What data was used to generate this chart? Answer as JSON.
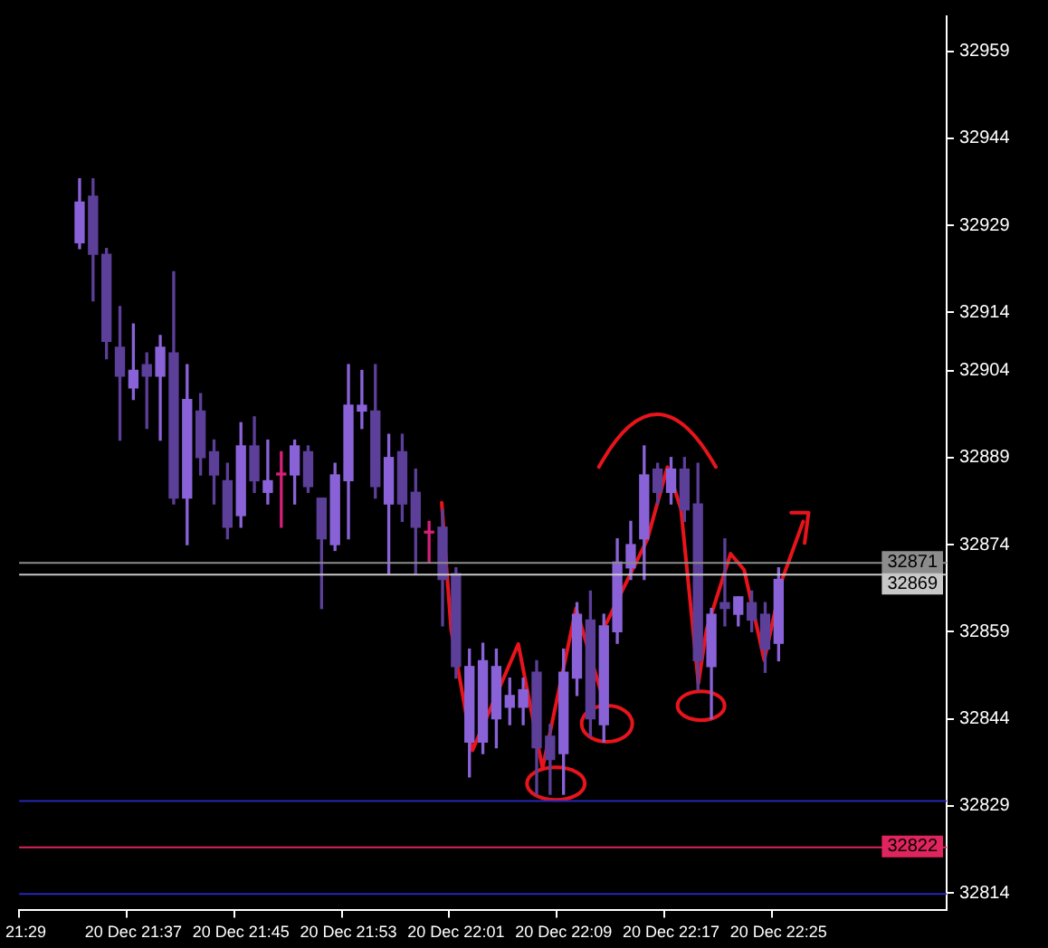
{
  "chart_data": {
    "type": "candlestick",
    "categories": [
      "21:29",
      null,
      null,
      null,
      null,
      null,
      null,
      null,
      "20 Dec 21:37",
      null,
      null,
      null,
      null,
      null,
      null,
      null,
      "20 Dec 21:45",
      null,
      null,
      null,
      null,
      null,
      null,
      null,
      "20 Dec 21:53",
      null,
      null,
      null,
      null,
      null,
      null,
      null,
      "20 Dec 22:01",
      null,
      null,
      null,
      null,
      null,
      null,
      null,
      "20 Dec 22:09",
      null,
      null,
      null,
      null,
      null,
      null,
      null,
      "20 Dec 22:17",
      null,
      null,
      null,
      null,
      null,
      null,
      null,
      "20 Dec 22:25",
      null,
      null,
      null,
      null,
      null,
      null,
      null,
      null,
      null,
      null,
      null,
      null
    ],
    "ohlc": [
      null,
      null,
      null,
      null,
      [
        32926,
        32937,
        32925,
        32933
      ],
      [
        32934,
        32937,
        32916,
        32924
      ],
      [
        32924,
        32925,
        32906,
        32909
      ],
      [
        32908,
        32915,
        32892,
        32903
      ],
      [
        32901,
        32912,
        32899,
        32904
      ],
      [
        32905,
        32907,
        32894,
        32903
      ],
      [
        32903,
        32910,
        32892,
        32908
      ],
      [
        32907,
        32921,
        32881,
        32882
      ],
      [
        32882,
        32905,
        32874,
        32899
      ],
      [
        32897,
        32900,
        32886,
        32889
      ],
      [
        32890,
        32892,
        32881,
        32886
      ],
      [
        32885,
        32888,
        32875,
        32877
      ],
      [
        32879,
        32895,
        32877,
        32891
      ],
      [
        32891,
        32896,
        32883,
        32885
      ],
      [
        32883,
        32892,
        32881,
        32885
      ],
      [
        32886,
        32890,
        32877,
        32886
      ],
      [
        32886,
        32892,
        32881,
        32891
      ],
      [
        32890,
        32891,
        32883,
        32884
      ],
      [
        32882,
        32882,
        32863,
        32875
      ],
      [
        32874,
        32888,
        32873,
        32886
      ],
      [
        32885,
        32905,
        32875,
        32898
      ],
      [
        32897,
        32904,
        32894,
        32898
      ],
      [
        32897,
        32905,
        32882,
        32884
      ],
      [
        32881,
        32893,
        32869,
        32889
      ],
      [
        32890,
        32893,
        32878,
        32881
      ],
      [
        32883,
        32887,
        32869,
        32877
      ],
      [
        32876,
        32878,
        32871,
        32876
      ],
      [
        32877,
        32880,
        32860,
        32868
      ],
      [
        32869,
        32870,
        32851,
        32853
      ],
      [
        32840,
        32856,
        32834,
        32853
      ],
      [
        32840,
        32857,
        32838,
        32854
      ],
      [
        32844,
        32856,
        32839,
        32853
      ],
      [
        32846,
        32851,
        32843,
        32848
      ],
      [
        32846,
        32851,
        32843,
        32849
      ],
      [
        32852,
        32854,
        32831,
        32839
      ],
      [
        32841,
        32843,
        32831,
        32837
      ],
      [
        32838,
        32856,
        32831,
        32852
      ],
      [
        32851,
        32864,
        32848,
        32862
      ],
      [
        32861,
        32866,
        32841,
        32844
      ],
      [
        32843,
        32862,
        32840,
        32860
      ],
      [
        32859,
        32875,
        32857,
        32871
      ],
      [
        32870,
        32878,
        32868,
        32874
      ],
      [
        32875,
        32891,
        32868,
        32886
      ],
      [
        32887,
        32888,
        32881,
        32883
      ],
      [
        32883,
        32889,
        32881,
        32887
      ],
      [
        32887,
        32889,
        32878,
        32880
      ],
      [
        32881,
        32888,
        32849,
        32854
      ],
      [
        32853,
        32863,
        32844,
        32862
      ],
      [
        32864,
        32875,
        32860,
        32863
      ],
      [
        32862,
        32865,
        32860,
        32865
      ],
      [
        32864,
        32866,
        32859,
        32861
      ],
      [
        32862,
        32864,
        32852,
        32856
      ],
      [
        32857,
        32870,
        32854,
        32868
      ],
      null,
      null,
      null,
      null,
      null,
      null,
      null,
      null,
      null,
      null,
      null,
      null
    ],
    "colors": [
      null,
      null,
      null,
      null,
      "#8a62d8",
      "#5c3f99",
      "#5c3f99",
      "#5c3f99",
      "#8a62d8",
      "#5c3f99",
      "#8a62d8",
      "#5c3f99",
      "#8a62d8",
      "#5c3f99",
      "#5c3f99",
      "#5c3f99",
      "#8a62d8",
      "#5c3f99",
      "#8a62d8",
      "#d4207a",
      "#8a62d8",
      "#5c3f99",
      "#5c3f99",
      "#8a62d8",
      "#8a62d8",
      "#8a62d8",
      "#5c3f99",
      "#8a62d8",
      "#5c3f99",
      "#5c3f99",
      "#d4207a",
      "#5c3f99",
      "#5c3f99",
      "#8a62d8",
      "#8a62d8",
      "#8a62d8",
      "#8a62d8",
      "#8a62d8",
      "#5c3f99",
      "#5c3f99",
      "#8a62d8",
      "#8a62d8",
      "#5c3f99",
      "#8a62d8",
      "#8a62d8",
      "#8a62d8",
      "#8a62d8",
      "#5c3f99",
      "#8a62d8",
      "#5c3f99",
      "#5c3f99",
      "#8a62d8",
      "#5c3f99",
      "#8a62d8",
      "#5c3f99",
      "#5c3f99",
      "#8a62d8",
      null,
      null,
      null,
      null,
      null,
      null,
      null,
      null,
      null,
      null,
      null,
      null
    ],
    "ylim": [
      32811,
      32965
    ],
    "yticks": [
      32959,
      32944,
      32929,
      32914,
      32904,
      32889,
      32874,
      32859,
      32844,
      32829,
      32814
    ],
    "ref_lines": [
      {
        "axis": "y",
        "value": 32871,
        "label": "32871",
        "color": "#8c8c8c"
      },
      {
        "axis": "y",
        "value": 32869,
        "label": "32869",
        "color": "#c8c8c8"
      },
      {
        "axis": "y",
        "value": 32830,
        "color": "#2626b8"
      },
      {
        "axis": "y",
        "value": 32822,
        "label": "32822",
        "color": "#e0245e"
      },
      {
        "axis": "y",
        "value": 32814,
        "color": "#2626b8"
      }
    ],
    "grid": false,
    "legend": false
  }
}
